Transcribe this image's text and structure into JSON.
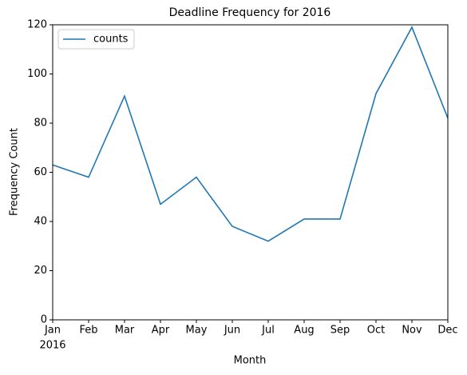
{
  "chart_data": {
    "type": "line",
    "title": "Deadline Frequency for 2016",
    "xlabel": "Month",
    "ylabel": "Frequency Count",
    "categories": [
      "Jan",
      "Feb",
      "Mar",
      "Apr",
      "May",
      "Jun",
      "Jul",
      "Aug",
      "Sep",
      "Oct",
      "Nov",
      "Dec"
    ],
    "year_label": "2016",
    "series": [
      {
        "name": "counts",
        "color": "#1f77b4",
        "values": [
          63,
          58,
          91,
          47,
          58,
          38,
          32,
          41,
          41,
          92,
          119,
          82
        ]
      }
    ],
    "ylim": [
      0,
      120
    ],
    "yticks": [
      0,
      20,
      40,
      60,
      80,
      100,
      120
    ],
    "legend": "upper left",
    "grid": false
  }
}
